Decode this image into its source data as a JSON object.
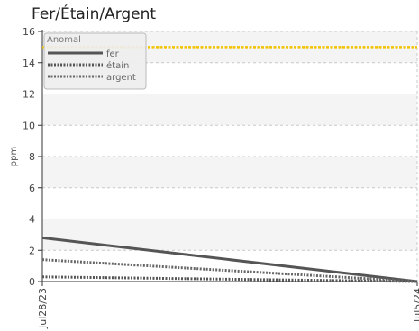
{
  "chart_data": {
    "type": "line",
    "title": "Fer/Étain/Argent",
    "ylabel": "ppm",
    "xlabel": "",
    "ylim": [
      0,
      16
    ],
    "yticks": [
      0,
      2,
      4,
      6,
      8,
      10,
      12,
      14,
      16
    ],
    "x": [
      "Jul28/23",
      "Jul5/24"
    ],
    "threshold": {
      "name": "Anomal",
      "value": 15,
      "color": "#f2c200"
    },
    "legend": {
      "title": "Anomal",
      "placement": "top-left"
    },
    "grid": true,
    "series": [
      {
        "name": "fer",
        "values": [
          2.8,
          0.0
        ],
        "style": "solid",
        "color": "#555555"
      },
      {
        "name": "étain",
        "values": [
          0.3,
          0.0
        ],
        "style": "dotted",
        "color": "#555555"
      },
      {
        "name": "argent",
        "values": [
          1.4,
          0.0
        ],
        "style": "dotted",
        "color": "#666666"
      }
    ]
  }
}
